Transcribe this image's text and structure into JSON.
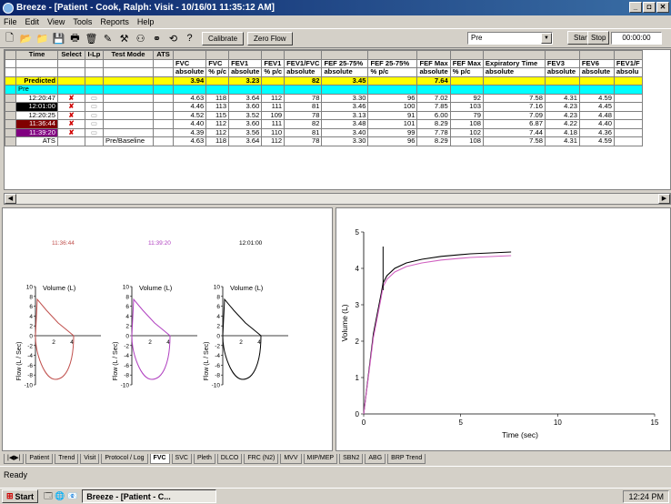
{
  "window": {
    "title": "Breeze - [Patient -  Cook, Ralph:  Visit -  10/16/01 11:35:12 AM]"
  },
  "menu": [
    "File",
    "Edit",
    "View",
    "Tools",
    "Reports",
    "Help"
  ],
  "toolbar": {
    "calibrate": "Calibrate",
    "zero_flow": "Zero Flow",
    "phase_select": "Pre",
    "start": "Start",
    "stop": "Stop",
    "timer": "00:00:00"
  },
  "grid": {
    "columns": [
      "Time",
      "Select",
      "I-Lp",
      "Test Mode",
      "ATS",
      "FVC",
      "FVC",
      "FEV1",
      "FEV1",
      "FEV1/FVC",
      "FEF 25-75%",
      "FEF 25-75%",
      "FEF Max",
      "FEF Max",
      "Expiratory Time",
      "FEV3",
      "FEV6",
      "FEV1/F"
    ],
    "subcolumns": [
      "absolute",
      "% p/c",
      "absolute",
      "% p/c",
      "absolute",
      "absolute",
      "% p/c",
      "absolute",
      "% p/c",
      "absolute",
      "absolute",
      "absolute",
      "absolu"
    ],
    "predicted": {
      "label": "Predicted",
      "fvc": "3.94",
      "fev1": "3.23",
      "fev1fvc": "82",
      "fef2575": "3.45",
      "fefmax": "7.64"
    },
    "pre_label": "Pre",
    "rows": [
      {
        "time": "12:20:47",
        "tm": "",
        "v": [
          "4.63",
          "118",
          "3.64",
          "112",
          "78",
          "3.30",
          "96",
          "7.02",
          "92",
          "7.58",
          "4.31",
          "4.59",
          ""
        ]
      },
      {
        "time": "12:01:00",
        "tm": "",
        "v": [
          "4.46",
          "113",
          "3.60",
          "111",
          "81",
          "3.46",
          "100",
          "7.85",
          "103",
          "7.16",
          "4.23",
          "4.45",
          ""
        ]
      },
      {
        "time": "12:20:25",
        "tm": "",
        "v": [
          "4.52",
          "115",
          "3.52",
          "109",
          "78",
          "3.13",
          "91",
          "6.00",
          "79",
          "7.09",
          "4.23",
          "4.48",
          ""
        ]
      },
      {
        "time": "11:36:44",
        "tm": "",
        "v": [
          "4.40",
          "112",
          "3.60",
          "111",
          "82",
          "3.48",
          "101",
          "8.29",
          "108",
          "6.87",
          "4.22",
          "4.40",
          ""
        ]
      },
      {
        "time": "11:39:20",
        "tm": "",
        "v": [
          "4.39",
          "112",
          "3.56",
          "110",
          "81",
          "3.40",
          "99",
          "7.78",
          "102",
          "7.44",
          "4.18",
          "4.36",
          ""
        ]
      },
      {
        "time": "ATS",
        "tm": "Pre/Baseline",
        "v": [
          "4.63",
          "118",
          "3.64",
          "112",
          "78",
          "3.30",
          "96",
          "8.29",
          "108",
          "7.58",
          "4.31",
          "4.59",
          ""
        ]
      }
    ]
  },
  "loops": {
    "ylabel": "Volume (L)",
    "xlabel": "Flow (L / Sec)",
    "yticks": [
      "10",
      "8",
      "6",
      "4",
      "2",
      "0",
      "-2",
      "-4",
      "-6",
      "-8",
      "-10"
    ],
    "xticks": [
      "2",
      "4"
    ],
    "items": [
      {
        "time": "11:36:44",
        "color": "#c0504d"
      },
      {
        "time": "11:39:20",
        "color": "#b040c0"
      },
      {
        "time": "12:01:00",
        "color": "#000000"
      }
    ]
  },
  "chart_data": {
    "type": "line",
    "xlabel": "Time (sec)",
    "ylabel": "Volume (L)",
    "xlim": [
      0,
      15
    ],
    "ylim": [
      0,
      5
    ],
    "xticks": [
      "0",
      "5",
      "10",
      "15"
    ],
    "yticks": [
      "0",
      "1",
      "2",
      "3",
      "4",
      "5"
    ],
    "series": [
      {
        "color": "#000000",
        "x": [
          0,
          0.5,
          0.9,
          1.0,
          1.2,
          1.6,
          2.2,
          3.0,
          4.0,
          5.5,
          7.6
        ],
        "y": [
          0,
          2.2,
          3.3,
          3.6,
          3.8,
          4.0,
          4.15,
          4.25,
          4.33,
          4.4,
          4.45
        ]
      },
      {
        "color": "#d060c0",
        "x": [
          0,
          0.5,
          0.9,
          1.0,
          1.2,
          1.6,
          2.2,
          3.0,
          4.0,
          5.5,
          7.6
        ],
        "y": [
          0,
          2.1,
          3.2,
          3.5,
          3.7,
          3.9,
          4.05,
          4.15,
          4.23,
          4.3,
          4.35
        ]
      }
    ]
  },
  "tabs": [
    "Patient",
    "Trend",
    "Visit",
    "Protocol / Log",
    "FVC",
    "SVC",
    "Pleth",
    "DLCO",
    "FRC (N2)",
    "MVV",
    "MIP/MEP",
    "SBN2",
    "ABG",
    "BRP Trend"
  ],
  "status": "Ready",
  "taskbar": {
    "start": "Start",
    "task": "Breeze - [Patient - C...",
    "clock": "12:24 PM"
  }
}
